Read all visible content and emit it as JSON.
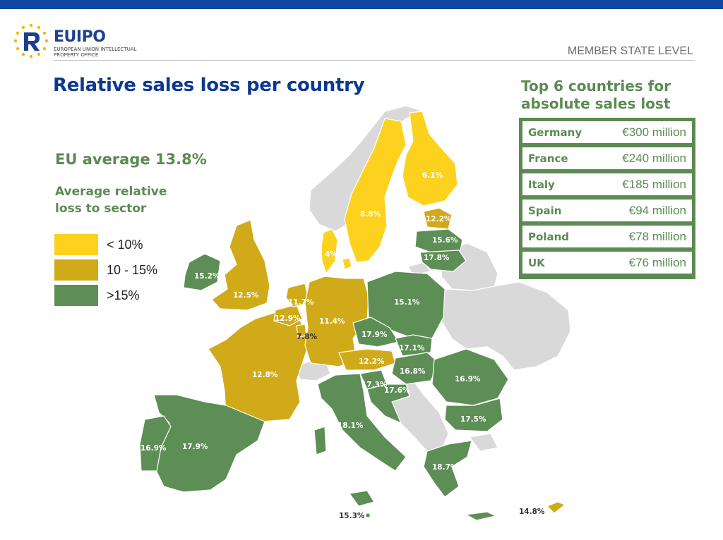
{
  "header": {
    "org_name": "EUIPO",
    "org_subtitle": "EUROPEAN UNION INTELLECTUAL PROPERTY OFFICE",
    "level_label": "MEMBER STATE LEVEL"
  },
  "title": "Relative sales loss per country",
  "eu_average": "EU average 13.8%",
  "legend": {
    "title": "Average relative loss to sector",
    "items": [
      {
        "label": "< 10%",
        "color": "#fcd21e"
      },
      {
        "label": "10 - 15%",
        "color": "#d0aa18"
      },
      {
        "label": ">15%",
        "color": "#5d8e55"
      }
    ]
  },
  "top6": {
    "title": "Top 6 countries for absolute sales lost",
    "rows": [
      {
        "country": "Germany",
        "value": "€300 million"
      },
      {
        "country": "France",
        "value": "€240 million"
      },
      {
        "country": "Italy",
        "value": "€185 million"
      },
      {
        "country": "Spain",
        "value": "€94 million"
      },
      {
        "country": "Poland",
        "value": "€78 million"
      },
      {
        "country": "UK",
        "value": "€76 million"
      }
    ]
  },
  "map_labels": {
    "finland": "6.1%",
    "sweden": "8.8%",
    "latvia": "12.2%",
    "lithuania": "15.6%",
    "estonia_lithuania2": "17.8%",
    "denmark": "4%",
    "ireland": "15.2%",
    "uk": "12.5%",
    "netherlands": "11.7%",
    "belgium": "12.9%",
    "luxembourg": "7.8%",
    "germany": "11.4%",
    "poland": "15.1%",
    "czechia": "17.9%",
    "slovakia": "17.1%",
    "austria": "12.2%",
    "hungary": "16.8%",
    "slovenia": "17.3%",
    "croatia": "17.6%",
    "romania": "16.9%",
    "bulgaria": "17.5%",
    "greece": "18.7%",
    "france": "12.8%",
    "italy": "18.1%",
    "portugal": "16.9%",
    "spain": "17.9%",
    "malta": "15.3%",
    "cyprus": "14.8%"
  },
  "colors": {
    "low": "#fcd21e",
    "mid": "#d0aa18",
    "high": "#5d8e55",
    "non_eu": "#d9d9d9",
    "brand_blue": "#0b3990",
    "topbar": "#0e47a1"
  }
}
